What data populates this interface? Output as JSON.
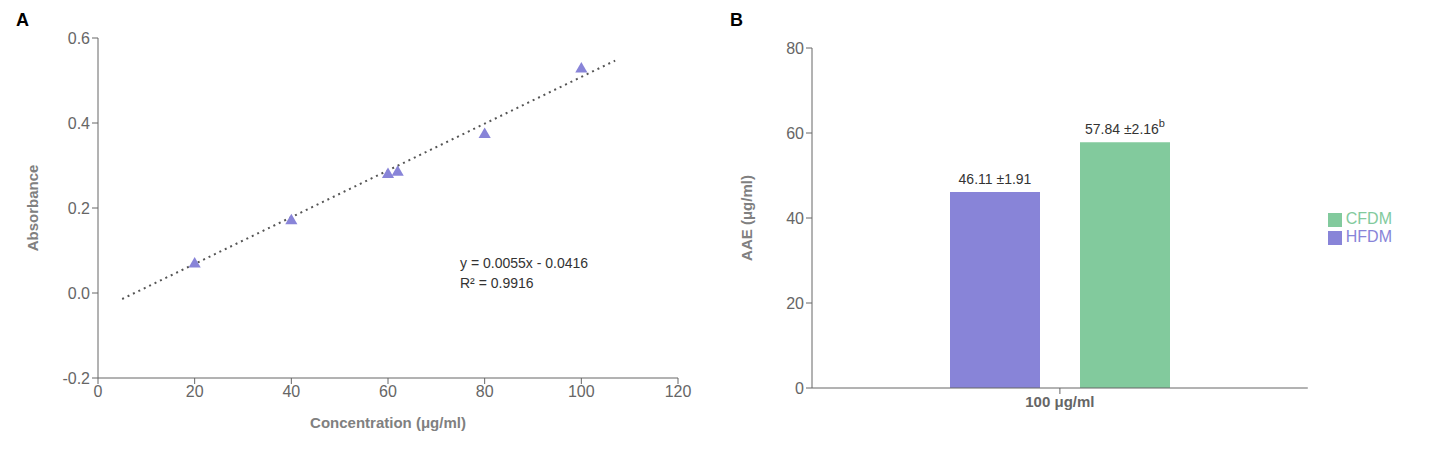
{
  "chart_data": [
    {
      "type": "scatter",
      "title": "A",
      "xlabel": "Concentration (μg/ml)",
      "ylabel": "Absorbance",
      "series": [
        {
          "type": "scatter",
          "marker": "triangle",
          "color": "#8884d8",
          "x": [
            20,
            40,
            60,
            62,
            80,
            100
          ],
          "values": [
            0.068,
            0.17,
            0.279,
            0.284,
            0.373,
            0.527
          ]
        },
        {
          "type": "line",
          "line_style": "dotted",
          "color": "#555555",
          "x": [
            5,
            107
          ],
          "values": [
            -0.0141,
            0.5469
          ]
        }
      ],
      "annotations": [
        "y = 0.0055x - 0.0416",
        "R² = 0.9916"
      ],
      "xlim": [
        0,
        120
      ],
      "ylim": [
        -0.2,
        0.6
      ],
      "xticks": [
        0,
        20,
        40,
        60,
        80,
        100,
        120
      ],
      "yticks": [
        -0.2,
        {
          "value": 0,
          "label": "0.0"
        },
        0.2,
        0.4,
        0.6
      ]
    },
    {
      "type": "bar",
      "title": "B",
      "categories": [
        "100 μg/ml"
      ],
      "ylabel": "AAE (μg/ml)",
      "series": [
        {
          "name": "HFDM",
          "color": "#8884d8",
          "values": [
            46.11
          ],
          "value_labels": [
            "46.11 ±1.91"
          ]
        },
        {
          "name": "CFDM",
          "color": "#82ca9d",
          "values": [
            57.84
          ],
          "value_labels": [
            "57.84 ±2.16"
          ],
          "annotations": [
            "b"
          ]
        }
      ],
      "data_labels": true,
      "legend": "right",
      "ylim": [
        0,
        80
      ],
      "yticks": [
        0,
        20,
        40,
        60,
        80
      ]
    }
  ]
}
